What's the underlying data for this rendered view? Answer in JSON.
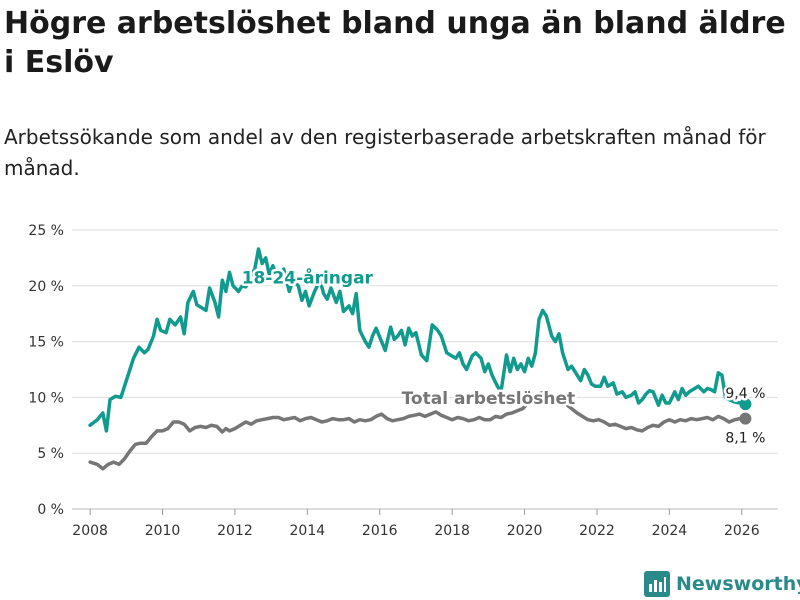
{
  "title": "Högre arbetslöshet bland unga än bland äldre i Eslöv",
  "subtitle": "Arbetssökande som andel av den registerbaserade arbetskraften månad för månad.",
  "brand": "Newsworthy",
  "colors": {
    "youth": "#119b8f",
    "total": "#767676",
    "grid": "#dddddd",
    "text": "#333333"
  },
  "chart_data": {
    "type": "line",
    "title": "Högre arbetslöshet bland unga än bland äldre i Eslöv",
    "xlabel": "",
    "ylabel": "",
    "xlim": [
      2007.5,
      2027.0
    ],
    "ylim": [
      0,
      25
    ],
    "yticks": [
      0,
      5,
      10,
      15,
      20,
      25
    ],
    "ytick_labels": [
      "0 %",
      "5 %",
      "10 %",
      "15 %",
      "20 %",
      "25 %"
    ],
    "xticks": [
      2008,
      2010,
      2012,
      2014,
      2016,
      2018,
      2020,
      2022,
      2024,
      2026
    ],
    "xtick_labels": [
      "2008",
      "2010",
      "2012",
      "2014",
      "2016",
      "2018",
      "2020",
      "2022",
      "2024",
      "2026"
    ],
    "grid": true,
    "legend": "inline labels",
    "series": [
      {
        "name": "18-24-åringar",
        "label": "18-24-åringar",
        "end_label": "9,4 %",
        "color": "#119b8f",
        "points": [
          [
            2008.0,
            7.5
          ],
          [
            2008.2,
            8.0
          ],
          [
            2008.35,
            8.6
          ],
          [
            2008.45,
            7.0
          ],
          [
            2008.55,
            9.8
          ],
          [
            2008.7,
            10.1
          ],
          [
            2008.85,
            10.0
          ],
          [
            2009.0,
            11.5
          ],
          [
            2009.2,
            13.5
          ],
          [
            2009.35,
            14.5
          ],
          [
            2009.5,
            14.0
          ],
          [
            2009.6,
            14.3
          ],
          [
            2009.75,
            15.5
          ],
          [
            2009.85,
            17.0
          ],
          [
            2009.95,
            16.0
          ],
          [
            2010.1,
            15.8
          ],
          [
            2010.2,
            17.0
          ],
          [
            2010.35,
            16.5
          ],
          [
            2010.5,
            17.2
          ],
          [
            2010.6,
            15.7
          ],
          [
            2010.7,
            18.5
          ],
          [
            2010.85,
            19.5
          ],
          [
            2010.95,
            18.3
          ],
          [
            2011.1,
            18.0
          ],
          [
            2011.2,
            17.8
          ],
          [
            2011.3,
            19.8
          ],
          [
            2011.45,
            18.5
          ],
          [
            2011.55,
            17.2
          ],
          [
            2011.65,
            20.5
          ],
          [
            2011.75,
            19.5
          ],
          [
            2011.85,
            21.2
          ],
          [
            2011.95,
            20.0
          ],
          [
            2012.1,
            19.5
          ],
          [
            2012.2,
            20.0
          ],
          [
            2012.3,
            19.9
          ],
          [
            2012.45,
            21.0
          ],
          [
            2012.55,
            21.5
          ],
          [
            2012.65,
            23.3
          ],
          [
            2012.75,
            22.0
          ],
          [
            2012.85,
            22.5
          ],
          [
            2012.95,
            21.0
          ],
          [
            2013.05,
            21.8
          ],
          [
            2013.2,
            20.5
          ],
          [
            2013.35,
            21.5
          ],
          [
            2013.5,
            19.5
          ],
          [
            2013.6,
            20.5
          ],
          [
            2013.75,
            20.0
          ],
          [
            2013.85,
            18.7
          ],
          [
            2013.95,
            19.5
          ],
          [
            2014.05,
            18.2
          ],
          [
            2014.2,
            19.5
          ],
          [
            2014.35,
            20.5
          ],
          [
            2014.45,
            19.3
          ],
          [
            2014.55,
            18.8
          ],
          [
            2014.65,
            19.8
          ],
          [
            2014.8,
            18.5
          ],
          [
            2014.9,
            19.5
          ],
          [
            2015.0,
            17.7
          ],
          [
            2015.15,
            18.2
          ],
          [
            2015.25,
            17.5
          ],
          [
            2015.35,
            19.3
          ],
          [
            2015.45,
            16.0
          ],
          [
            2015.6,
            15.0
          ],
          [
            2015.7,
            14.5
          ],
          [
            2015.8,
            15.5
          ],
          [
            2015.9,
            16.2
          ],
          [
            2016.05,
            15.0
          ],
          [
            2016.15,
            14.2
          ],
          [
            2016.3,
            16.3
          ],
          [
            2016.4,
            15.2
          ],
          [
            2016.5,
            15.5
          ],
          [
            2016.6,
            16.0
          ],
          [
            2016.7,
            14.7
          ],
          [
            2016.8,
            16.2
          ],
          [
            2016.9,
            15.5
          ],
          [
            2017.0,
            15.8
          ],
          [
            2017.15,
            13.8
          ],
          [
            2017.3,
            13.3
          ],
          [
            2017.45,
            16.5
          ],
          [
            2017.6,
            16.0
          ],
          [
            2017.7,
            15.5
          ],
          [
            2017.85,
            14.0
          ],
          [
            2017.95,
            13.8
          ],
          [
            2018.1,
            13.5
          ],
          [
            2018.2,
            14.0
          ],
          [
            2018.3,
            13.0
          ],
          [
            2018.4,
            12.5
          ],
          [
            2018.55,
            13.7
          ],
          [
            2018.65,
            14.0
          ],
          [
            2018.8,
            13.5
          ],
          [
            2018.9,
            12.3
          ],
          [
            2019.0,
            13.0
          ],
          [
            2019.1,
            12.0
          ],
          [
            2019.25,
            11.0
          ],
          [
            2019.35,
            10.5
          ],
          [
            2019.5,
            13.8
          ],
          [
            2019.6,
            12.3
          ],
          [
            2019.7,
            13.5
          ],
          [
            2019.8,
            12.5
          ],
          [
            2019.9,
            13.0
          ],
          [
            2020.0,
            12.3
          ],
          [
            2020.1,
            13.5
          ],
          [
            2020.2,
            12.8
          ],
          [
            2020.3,
            14.0
          ],
          [
            2020.4,
            17.0
          ],
          [
            2020.5,
            17.8
          ],
          [
            2020.6,
            17.3
          ],
          [
            2020.75,
            15.5
          ],
          [
            2020.85,
            15.0
          ],
          [
            2020.95,
            15.7
          ],
          [
            2021.05,
            14.0
          ],
          [
            2021.2,
            12.5
          ],
          [
            2021.3,
            12.8
          ],
          [
            2021.45,
            12.0
          ],
          [
            2021.55,
            11.5
          ],
          [
            2021.65,
            12.5
          ],
          [
            2021.75,
            12.0
          ],
          [
            2021.85,
            11.2
          ],
          [
            2021.95,
            11.0
          ],
          [
            2022.1,
            11.0
          ],
          [
            2022.2,
            11.8
          ],
          [
            2022.3,
            11.0
          ],
          [
            2022.45,
            11.3
          ],
          [
            2022.55,
            10.3
          ],
          [
            2022.7,
            10.5
          ],
          [
            2022.8,
            10.0
          ],
          [
            2022.95,
            10.2
          ],
          [
            2023.05,
            10.5
          ],
          [
            2023.15,
            9.5
          ],
          [
            2023.25,
            9.8
          ],
          [
            2023.35,
            10.3
          ],
          [
            2023.45,
            10.6
          ],
          [
            2023.55,
            10.5
          ],
          [
            2023.7,
            9.3
          ],
          [
            2023.8,
            10.2
          ],
          [
            2023.9,
            9.5
          ],
          [
            2024.0,
            9.5
          ],
          [
            2024.15,
            10.5
          ],
          [
            2024.25,
            9.8
          ],
          [
            2024.35,
            10.8
          ],
          [
            2024.45,
            10.2
          ],
          [
            2024.55,
            10.5
          ],
          [
            2024.7,
            10.8
          ],
          [
            2024.8,
            11.0
          ],
          [
            2024.95,
            10.5
          ],
          [
            2025.05,
            10.8
          ],
          [
            2025.15,
            10.7
          ],
          [
            2025.25,
            10.5
          ],
          [
            2025.35,
            12.2
          ],
          [
            2025.45,
            12.0
          ],
          [
            2025.55,
            10.0
          ],
          [
            2025.65,
            9.8
          ],
          [
            2025.8,
            9.6
          ],
          [
            2025.95,
            9.5
          ],
          [
            2026.1,
            9.4
          ]
        ]
      },
      {
        "name": "Total arbetslöshet",
        "label": "Total arbetslöshet",
        "end_label": "8,1 %",
        "color": "#767676",
        "points": [
          [
            2008.0,
            4.2
          ],
          [
            2008.2,
            4.0
          ],
          [
            2008.35,
            3.6
          ],
          [
            2008.5,
            4.0
          ],
          [
            2008.65,
            4.2
          ],
          [
            2008.8,
            4.0
          ],
          [
            2008.95,
            4.5
          ],
          [
            2009.1,
            5.2
          ],
          [
            2009.25,
            5.8
          ],
          [
            2009.4,
            5.9
          ],
          [
            2009.55,
            5.9
          ],
          [
            2009.7,
            6.5
          ],
          [
            2009.85,
            7.0
          ],
          [
            2010.0,
            7.0
          ],
          [
            2010.15,
            7.2
          ],
          [
            2010.3,
            7.8
          ],
          [
            2010.45,
            7.8
          ],
          [
            2010.6,
            7.6
          ],
          [
            2010.75,
            7.0
          ],
          [
            2010.9,
            7.3
          ],
          [
            2011.05,
            7.4
          ],
          [
            2011.2,
            7.3
          ],
          [
            2011.35,
            7.5
          ],
          [
            2011.5,
            7.4
          ],
          [
            2011.65,
            6.9
          ],
          [
            2011.75,
            7.2
          ],
          [
            2011.85,
            7.0
          ],
          [
            2012.0,
            7.2
          ],
          [
            2012.15,
            7.5
          ],
          [
            2012.3,
            7.8
          ],
          [
            2012.45,
            7.6
          ],
          [
            2012.6,
            7.9
          ],
          [
            2012.75,
            8.0
          ],
          [
            2012.9,
            8.1
          ],
          [
            2013.05,
            8.2
          ],
          [
            2013.2,
            8.2
          ],
          [
            2013.35,
            8.0
          ],
          [
            2013.5,
            8.1
          ],
          [
            2013.65,
            8.2
          ],
          [
            2013.8,
            7.9
          ],
          [
            2013.95,
            8.1
          ],
          [
            2014.1,
            8.2
          ],
          [
            2014.25,
            8.0
          ],
          [
            2014.4,
            7.8
          ],
          [
            2014.55,
            7.9
          ],
          [
            2014.7,
            8.1
          ],
          [
            2014.85,
            8.0
          ],
          [
            2015.0,
            8.0
          ],
          [
            2015.15,
            8.1
          ],
          [
            2015.3,
            7.8
          ],
          [
            2015.45,
            8.0
          ],
          [
            2015.6,
            7.9
          ],
          [
            2015.75,
            8.0
          ],
          [
            2015.9,
            8.3
          ],
          [
            2016.05,
            8.5
          ],
          [
            2016.2,
            8.1
          ],
          [
            2016.35,
            7.9
          ],
          [
            2016.5,
            8.0
          ],
          [
            2016.65,
            8.1
          ],
          [
            2016.8,
            8.3
          ],
          [
            2016.95,
            8.4
          ],
          [
            2017.1,
            8.5
          ],
          [
            2017.25,
            8.3
          ],
          [
            2017.4,
            8.5
          ],
          [
            2017.55,
            8.7
          ],
          [
            2017.7,
            8.4
          ],
          [
            2017.85,
            8.2
          ],
          [
            2018.0,
            8.0
          ],
          [
            2018.15,
            8.2
          ],
          [
            2018.3,
            8.1
          ],
          [
            2018.45,
            7.9
          ],
          [
            2018.6,
            8.0
          ],
          [
            2018.75,
            8.2
          ],
          [
            2018.9,
            8.0
          ],
          [
            2019.05,
            8.0
          ],
          [
            2019.2,
            8.3
          ],
          [
            2019.35,
            8.2
          ],
          [
            2019.5,
            8.5
          ],
          [
            2019.65,
            8.6
          ],
          [
            2019.8,
            8.8
          ],
          [
            2019.95,
            9.0
          ],
          [
            2020.1,
            9.5
          ],
          [
            2020.25,
            9.8
          ],
          [
            2020.4,
            10.3
          ],
          [
            2020.55,
            10.5
          ],
          [
            2020.7,
            10.3
          ],
          [
            2020.85,
            10.0
          ],
          [
            2021.0,
            9.9
          ],
          [
            2021.15,
            9.4
          ],
          [
            2021.3,
            9.0
          ],
          [
            2021.45,
            8.6
          ],
          [
            2021.6,
            8.3
          ],
          [
            2021.75,
            8.0
          ],
          [
            2021.9,
            7.9
          ],
          [
            2022.05,
            8.0
          ],
          [
            2022.2,
            7.8
          ],
          [
            2022.35,
            7.5
          ],
          [
            2022.5,
            7.6
          ],
          [
            2022.65,
            7.4
          ],
          [
            2022.8,
            7.2
          ],
          [
            2022.95,
            7.3
          ],
          [
            2023.1,
            7.1
          ],
          [
            2023.25,
            7.0
          ],
          [
            2023.4,
            7.3
          ],
          [
            2023.55,
            7.5
          ],
          [
            2023.7,
            7.4
          ],
          [
            2023.85,
            7.8
          ],
          [
            2024.0,
            8.0
          ],
          [
            2024.15,
            7.8
          ],
          [
            2024.3,
            8.0
          ],
          [
            2024.45,
            7.9
          ],
          [
            2024.6,
            8.1
          ],
          [
            2024.75,
            8.0
          ],
          [
            2024.9,
            8.1
          ],
          [
            2025.05,
            8.2
          ],
          [
            2025.2,
            8.0
          ],
          [
            2025.35,
            8.3
          ],
          [
            2025.5,
            8.1
          ],
          [
            2025.65,
            7.8
          ],
          [
            2025.8,
            8.0
          ],
          [
            2025.95,
            8.1
          ],
          [
            2026.1,
            8.1
          ]
        ]
      }
    ]
  }
}
